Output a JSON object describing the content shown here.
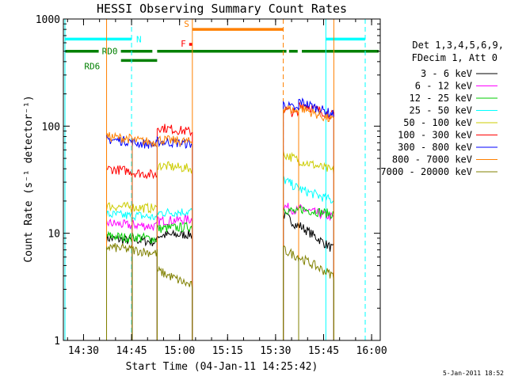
{
  "chart_data": {
    "type": "line",
    "title": "HESSI Observing Summary Count Rates",
    "xlabel": "Start Time (04-Jan-11 14:25:42)",
    "ylabel": "Count Rate (s⁻¹ detector⁻¹)",
    "x_unit": "minutes after 14:25:42 (axis ticks printed as clock time)",
    "xlim": [
      -2,
      97
    ],
    "ylim": [
      1,
      1000
    ],
    "y_scale": "log",
    "x_ticks": [
      {
        "t": 4.3,
        "label": "14:30"
      },
      {
        "t": 19.3,
        "label": "14:45"
      },
      {
        "t": 34.3,
        "label": "15:00"
      },
      {
        "t": 49.3,
        "label": "15:15"
      },
      {
        "t": 64.3,
        "label": "15:30"
      },
      {
        "t": 79.3,
        "label": "15:45"
      },
      {
        "t": 94.3,
        "label": "16:00"
      }
    ],
    "y_ticks": [
      {
        "v": 1,
        "label": "1"
      },
      {
        "v": 10,
        "label": "10"
      },
      {
        "v": 100,
        "label": "100"
      },
      {
        "v": 1000,
        "label": "1000"
      }
    ],
    "legend_header": [
      "Det 1,3,4,5,6,9,",
      "FDecim 1, Att 0"
    ],
    "legend_position": "right",
    "timestamp": "5-Jan-2011 18:52",
    "series": [
      {
        "name": "3 - 6 keV",
        "color": "#000000",
        "segments": [
          {
            "x0": 11.5,
            "x1": 19.5,
            "y0": 9.0,
            "y1": 8.5
          },
          {
            "x0": 19.5,
            "x1": 27.3,
            "y0": 8.8,
            "y1": 8.2
          },
          {
            "x0": 27.3,
            "x1": 38.3,
            "y0": 9.5,
            "y1": 9.8
          },
          {
            "x0": 66.7,
            "x1": 71.5,
            "y0": 15.0,
            "y1": 11.5
          },
          {
            "x0": 71.5,
            "x1": 82.5,
            "y0": 12.0,
            "y1": 7.0
          }
        ]
      },
      {
        "name": "6 - 12 keV",
        "color": "#ff00ff",
        "segments": [
          {
            "x0": 11.5,
            "x1": 19.5,
            "y0": 12.5,
            "y1": 11.8
          },
          {
            "x0": 19.5,
            "x1": 27.3,
            "y0": 12.0,
            "y1": 11.5
          },
          {
            "x0": 27.3,
            "x1": 38.3,
            "y0": 13.0,
            "y1": 13.5
          },
          {
            "x0": 66.7,
            "x1": 71.5,
            "y0": 18.0,
            "y1": 16.0
          },
          {
            "x0": 71.5,
            "x1": 82.5,
            "y0": 17.0,
            "y1": 14.0
          }
        ]
      },
      {
        "name": "12 - 25 keV",
        "color": "#00cc00",
        "segments": [
          {
            "x0": 11.5,
            "x1": 19.5,
            "y0": 9.5,
            "y1": 9.0
          },
          {
            "x0": 19.5,
            "x1": 27.3,
            "y0": 9.3,
            "y1": 8.8
          },
          {
            "x0": 27.3,
            "x1": 38.3,
            "y0": 11.0,
            "y1": 11.5
          },
          {
            "x0": 66.7,
            "x1": 71.5,
            "y0": 17.0,
            "y1": 15.5
          },
          {
            "x0": 71.5,
            "x1": 82.5,
            "y0": 17.0,
            "y1": 15.0
          }
        ]
      },
      {
        "name": "25 - 50 keV",
        "color": "#00ffff",
        "segments": [
          {
            "x0": 11.5,
            "x1": 19.5,
            "y0": 15.0,
            "y1": 14.5
          },
          {
            "x0": 19.5,
            "x1": 27.3,
            "y0": 14.8,
            "y1": 14.0
          },
          {
            "x0": 27.3,
            "x1": 38.3,
            "y0": 15.5,
            "y1": 16.0
          },
          {
            "x0": 66.7,
            "x1": 71.5,
            "y0": 32.0,
            "y1": 26.0
          },
          {
            "x0": 71.5,
            "x1": 82.5,
            "y0": 26.0,
            "y1": 20.0
          }
        ]
      },
      {
        "name": "50 - 100 keV",
        "color": "#cccc00",
        "segments": [
          {
            "x0": 11.5,
            "x1": 19.5,
            "y0": 18.0,
            "y1": 17.5
          },
          {
            "x0": 19.5,
            "x1": 27.3,
            "y0": 17.5,
            "y1": 17.0
          },
          {
            "x0": 27.3,
            "x1": 38.3,
            "y0": 43.0,
            "y1": 40.0
          },
          {
            "x0": 66.7,
            "x1": 71.5,
            "y0": 55.0,
            "y1": 48.0
          },
          {
            "x0": 71.5,
            "x1": 82.5,
            "y0": 48.0,
            "y1": 38.0
          }
        ]
      },
      {
        "name": "100 - 300 keV",
        "color": "#ff0000",
        "segments": [
          {
            "x0": 11.5,
            "x1": 19.5,
            "y0": 40.0,
            "y1": 38.0
          },
          {
            "x0": 19.5,
            "x1": 27.3,
            "y0": 37.0,
            "y1": 35.0
          },
          {
            "x0": 27.3,
            "x1": 38.3,
            "y0": 98.0,
            "y1": 88.0
          },
          {
            "x0": 66.7,
            "x1": 71.5,
            "y0": 145.0,
            "y1": 128.0
          },
          {
            "x0": 71.5,
            "x1": 82.5,
            "y0": 165.0,
            "y1": 125.0
          }
        ]
      },
      {
        "name": "300 - 800 keV",
        "color": "#0000ff",
        "segments": [
          {
            "x0": 11.5,
            "x1": 19.5,
            "y0": 75.0,
            "y1": 72.0
          },
          {
            "x0": 19.5,
            "x1": 27.3,
            "y0": 70.0,
            "y1": 67.0
          },
          {
            "x0": 27.3,
            "x1": 38.3,
            "y0": 72.0,
            "y1": 68.0
          },
          {
            "x0": 66.7,
            "x1": 71.5,
            "y0": 160.0,
            "y1": 140.0
          },
          {
            "x0": 71.5,
            "x1": 82.5,
            "y0": 172.0,
            "y1": 128.0
          }
        ]
      },
      {
        "name": "800 - 7000 keV",
        "color": "#ff8000",
        "segments": [
          {
            "x0": 11.5,
            "x1": 19.5,
            "y0": 80.0,
            "y1": 76.0
          },
          {
            "x0": 19.5,
            "x1": 27.3,
            "y0": 74.0,
            "y1": 70.0
          },
          {
            "x0": 27.3,
            "x1": 38.3,
            "y0": 75.0,
            "y1": 71.0
          },
          {
            "x0": 66.7,
            "x1": 71.5,
            "y0": 150.0,
            "y1": 135.0
          },
          {
            "x0": 71.5,
            "x1": 82.5,
            "y0": 150.0,
            "y1": 112.0
          }
        ]
      },
      {
        "name": "7000 - 20000 keV",
        "color": "#808000",
        "segments": [
          {
            "x0": 11.5,
            "x1": 19.5,
            "y0": 7.5,
            "y1": 7.0
          },
          {
            "x0": 19.5,
            "x1": 27.3,
            "y0": 7.0,
            "y1": 6.5
          },
          {
            "x0": 27.3,
            "x1": 38.3,
            "y0": 4.5,
            "y1": 3.2
          },
          {
            "x0": 66.7,
            "x1": 71.5,
            "y0": 7.0,
            "y1": 6.0
          },
          {
            "x0": 71.5,
            "x1": 82.5,
            "y0": 6.0,
            "y1": 4.0
          }
        ]
      }
    ],
    "vertical_markers": [
      {
        "t": 11.5,
        "color": "#ff8000",
        "style": "solid"
      },
      {
        "t": 38.3,
        "color": "#ff8000",
        "style": "solid"
      },
      {
        "t": 66.7,
        "color": "#ff8000",
        "style": "dashed"
      },
      {
        "t": 82.5,
        "color": "#ff8000",
        "style": "solid"
      },
      {
        "t": -1.5,
        "color": "#00ffff",
        "style": "solid"
      },
      {
        "t": 19.3,
        "color": "#00ffff",
        "style": "dashed"
      },
      {
        "t": 80.0,
        "color": "#00ffff",
        "style": "solid"
      },
      {
        "t": 92.3,
        "color": "#00ffff",
        "style": "dashed"
      }
    ],
    "flag_bars": [
      {
        "label": "N",
        "color": "#00ffff",
        "y": 650,
        "segments": [
          [
            -1.5,
            19.3
          ],
          [
            80.0,
            92.3
          ]
        ]
      },
      {
        "label": "S",
        "color": "#ff8000",
        "y": 800,
        "segments": [
          [
            38.3,
            66.7
          ]
        ]
      },
      {
        "label": "F",
        "color": "#ff0000",
        "y": 580,
        "segments": [
          [
            37.3,
            38.3
          ]
        ]
      },
      {
        "label": "RD0",
        "color": "#008000",
        "y": 500,
        "segments": [
          [
            -1.5,
            25.8
          ],
          [
            27.3,
            67.7
          ],
          [
            68.5,
            71.2
          ],
          [
            72.5,
            96.5
          ]
        ]
      },
      {
        "label": "RD6",
        "color": "#008000",
        "y": 410,
        "segments": [
          [
            16.0,
            27.3
          ]
        ]
      }
    ]
  }
}
